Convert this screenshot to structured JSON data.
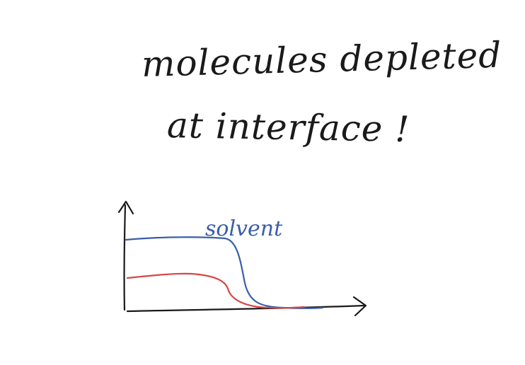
{
  "note": {
    "line1": "molecules depleted",
    "line2": "at interface !"
  },
  "sketch": {
    "series": [
      {
        "label": "solvent",
        "color": "#3a5ea8"
      },
      {
        "label": "",
        "color": "#d64545"
      }
    ],
    "axis_color": "#1a1a1a"
  }
}
